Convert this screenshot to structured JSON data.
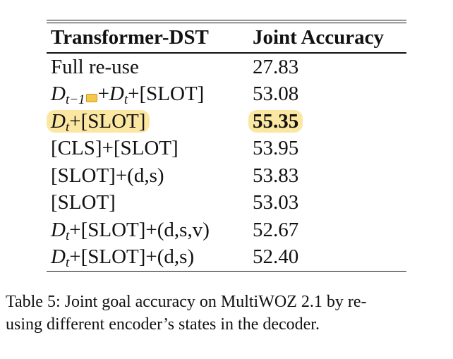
{
  "table": {
    "headers": [
      "Transformer-DST",
      "Joint Accuracy"
    ],
    "rows": [
      {
        "label": "Full re-use",
        "value": "27.83"
      },
      {
        "label_parts": [
          "D",
          "t−1",
          "+",
          "D",
          "t",
          "+[SLOT]"
        ],
        "value": "53.08"
      },
      {
        "label_parts": [
          "D",
          "t",
          "+[SLOT]"
        ],
        "value": "55.35",
        "highlight": true
      },
      {
        "label": "[CLS]+[SLOT]",
        "value": "53.95"
      },
      {
        "label": "[SLOT]+(d,s)",
        "value": "53.83"
      },
      {
        "label": "[SLOT]",
        "value": "53.03"
      },
      {
        "label_parts": [
          "D",
          "t",
          "+[SLOT]+(d,s,v)"
        ],
        "value": "52.67"
      },
      {
        "label_parts": [
          "D",
          "t",
          "+[SLOT]+(d,s)"
        ],
        "value": "52.40"
      }
    ]
  },
  "caption": {
    "line1": "Table 5:  Joint goal accuracy on MultiWOZ 2.1 by re-",
    "line2": "using different encoder’s states in the decoder."
  },
  "colors": {
    "highlight": "#fbe7a1",
    "note_icon": "#f5c84b"
  },
  "icons": {
    "annotation": "note-icon"
  }
}
